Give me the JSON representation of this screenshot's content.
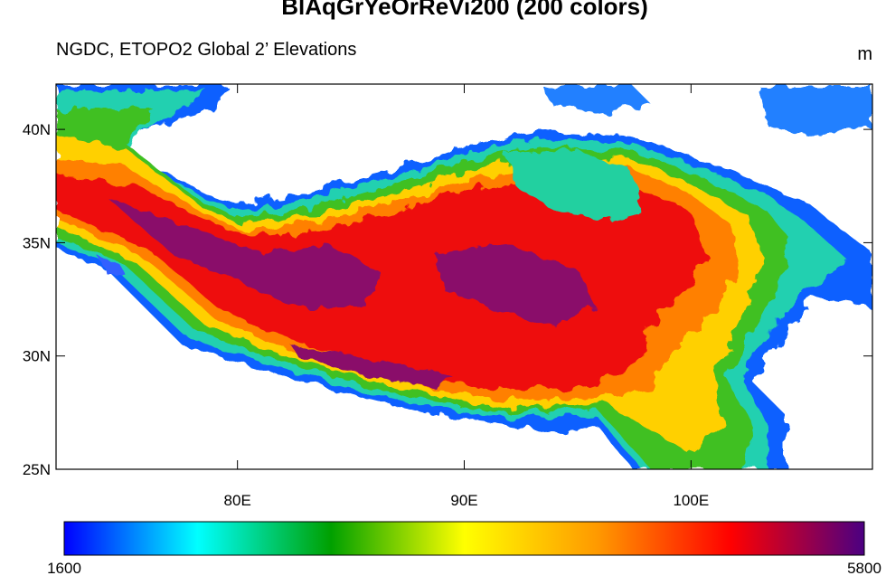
{
  "chart_data": {
    "type": "map",
    "title": "BlAqGrYeOrReVi200 (200 colors)",
    "subtitle": "NGDC, ETOPO2 Global 2’ Elevations",
    "units": "m",
    "xlim": [
      72,
      108
    ],
    "ylim": [
      25,
      42
    ],
    "xticks": [
      {
        "value": 80,
        "label": "80E"
      },
      {
        "value": 90,
        "label": "90E"
      },
      {
        "value": 100,
        "label": "100E"
      }
    ],
    "yticks": [
      {
        "value": 25,
        "label": "25N"
      },
      {
        "value": 30,
        "label": "30N"
      },
      {
        "value": 35,
        "label": "35N"
      },
      {
        "value": 40,
        "label": "40N"
      }
    ],
    "colorbar": {
      "range": [
        1600,
        5800
      ],
      "colors": [
        "#0000ff",
        "#00ffff",
        "#00a000",
        "#ffff00",
        "#ff9900",
        "#ff0000",
        "#4b0082"
      ]
    }
  }
}
